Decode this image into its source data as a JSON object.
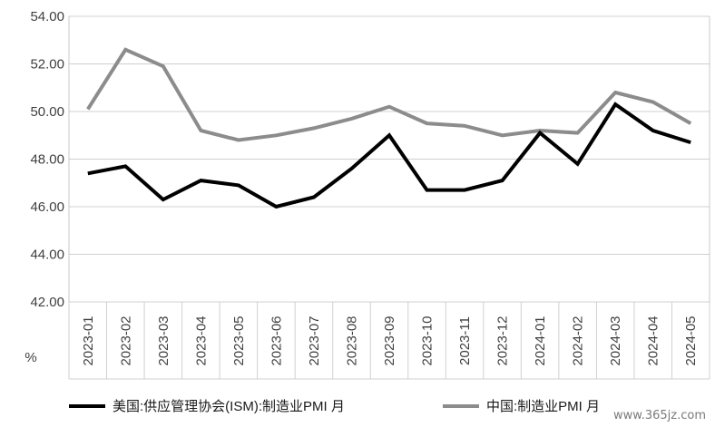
{
  "chart_data": {
    "type": "line",
    "x": [
      "2023-01",
      "2023-02",
      "2023-03",
      "2023-04",
      "2023-05",
      "2023-06",
      "2023-07",
      "2023-08",
      "2023-09",
      "2023-10",
      "2023-11",
      "2023-12",
      "2024-01",
      "2024-02",
      "2024-03",
      "2024-04",
      "2024-05"
    ],
    "series": [
      {
        "name": "美国:供应管理协会(ISM):制造业PMI 月",
        "color": "#000000",
        "values": [
          47.4,
          47.7,
          46.3,
          47.1,
          46.9,
          46.0,
          46.4,
          47.6,
          49.0,
          46.7,
          46.7,
          47.1,
          49.1,
          47.8,
          50.3,
          49.2,
          48.7
        ]
      },
      {
        "name": "中国:制造业PMI 月",
        "color": "#8c8c8c",
        "values": [
          50.1,
          52.6,
          51.9,
          49.2,
          48.8,
          49.0,
          49.3,
          49.7,
          50.2,
          49.5,
          49.4,
          49.0,
          49.2,
          49.1,
          50.8,
          50.4,
          49.5
        ]
      }
    ],
    "ylim": [
      42,
      54
    ],
    "yticks": [
      "42.00",
      "44.00",
      "46.00",
      "48.00",
      "50.00",
      "52.00",
      "54.00"
    ],
    "ylabel": "%",
    "grid": true,
    "legend": "bottom"
  },
  "watermark": "www.365jz.com"
}
